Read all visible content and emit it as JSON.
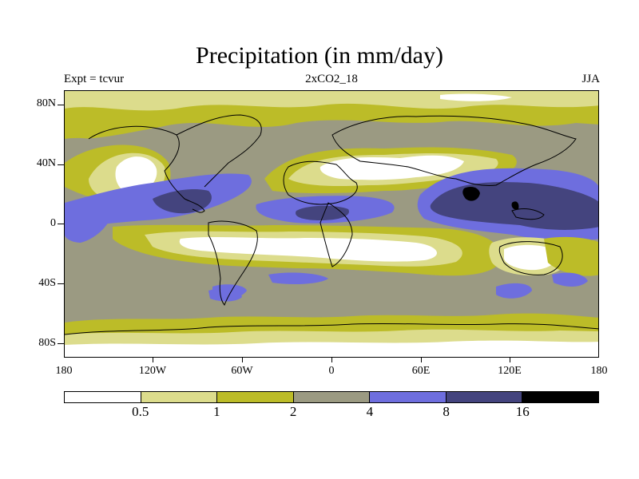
{
  "title": "Precipitation (in mm/day)",
  "subtitle_left": "Expt = tcvur",
  "subtitle_center": "2xCO2_18",
  "subtitle_right": "JJA",
  "lat_labels": [
    "80N",
    "40N",
    "0",
    "40S",
    "80S"
  ],
  "lon_labels": [
    "180",
    "120W",
    "60W",
    "0",
    "60E",
    "120E",
    "180"
  ],
  "colorbar": {
    "colors": [
      "#ffffff",
      "#dcdc8c",
      "#bcbc28",
      "#9b9a82",
      "#6e6ede",
      "#44447e",
      "#000000"
    ],
    "levels": [
      "0.5",
      "1",
      "2",
      "4",
      "8",
      "16"
    ]
  }
}
